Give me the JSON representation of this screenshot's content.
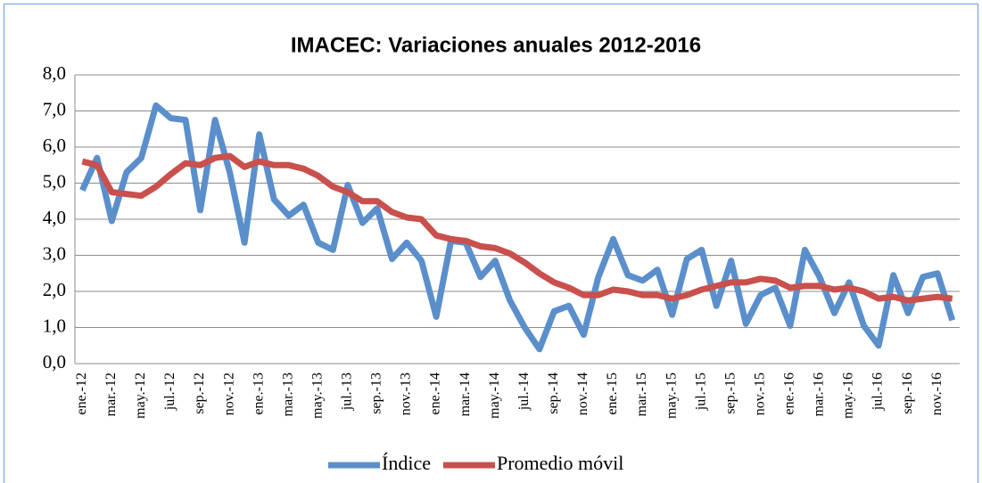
{
  "chart_data": {
    "type": "line",
    "title": "IMACEC: Variaciones anuales 2012-2016",
    "categories": [
      "ene.-12",
      null,
      "mar.-12",
      null,
      "may.-12",
      null,
      "jul.-12",
      null,
      "sep.-12",
      null,
      "nov.-12",
      null,
      "ene.-13",
      null,
      "mar.-13",
      null,
      "may.-13",
      null,
      "jul.-13",
      null,
      "sep.-13",
      null,
      "nov.-13",
      null,
      "ene.-14",
      null,
      "mar.-14",
      null,
      "may.-14",
      null,
      "jul.-14",
      null,
      "sep.-14",
      null,
      "nov.-14",
      null,
      "ene.-15",
      null,
      "mar.-15",
      null,
      "may.-15",
      null,
      "jul.-15",
      null,
      "sep.-15",
      null,
      "nov.-15",
      null,
      "ene.-16",
      null,
      "mar.-16",
      null,
      "may.-16",
      null,
      "jul.-16",
      null,
      "sep.-16",
      null,
      "nov.-16",
      null
    ],
    "series": [
      {
        "name": "Índice",
        "color": "#5b8fcb",
        "values": [
          4.8,
          5.7,
          3.95,
          5.3,
          5.7,
          7.15,
          6.8,
          6.75,
          4.25,
          6.75,
          5.3,
          3.35,
          6.35,
          4.55,
          4.1,
          4.4,
          3.35,
          3.15,
          4.95,
          3.9,
          4.3,
          2.9,
          3.35,
          2.85,
          1.3,
          3.4,
          3.35,
          2.4,
          2.85,
          1.75,
          1.0,
          0.4,
          1.45,
          1.6,
          0.8,
          2.4,
          3.45,
          2.45,
          2.3,
          2.6,
          1.35,
          2.9,
          3.15,
          1.6,
          2.85,
          1.1,
          1.9,
          2.1,
          1.05,
          3.15,
          2.4,
          1.4,
          2.25,
          1.05,
          0.5,
          2.45,
          1.4,
          2.4,
          2.5,
          1.2
        ]
      },
      {
        "name": "Promedio móvil",
        "color": "#c9504c",
        "values": [
          5.6,
          5.5,
          4.75,
          4.7,
          4.65,
          4.9,
          5.25,
          5.55,
          5.5,
          5.7,
          5.75,
          5.45,
          5.6,
          5.5,
          5.5,
          5.4,
          5.2,
          4.9,
          4.75,
          4.5,
          4.5,
          4.2,
          4.05,
          4.0,
          3.55,
          3.45,
          3.4,
          3.25,
          3.2,
          3.05,
          2.8,
          2.5,
          2.25,
          2.1,
          1.9,
          1.9,
          2.05,
          2.0,
          1.9,
          1.9,
          1.8,
          1.9,
          2.05,
          2.15,
          2.25,
          2.25,
          2.35,
          2.3,
          2.1,
          2.15,
          2.15,
          2.05,
          2.1,
          2.0,
          1.8,
          1.85,
          1.75,
          1.8,
          1.85,
          1.8
        ]
      }
    ],
    "ylim": [
      0,
      8
    ],
    "yticks": [
      {
        "value": 0,
        "label": "0,0"
      },
      {
        "value": 1,
        "label": "1,0"
      },
      {
        "value": 2,
        "label": "2,0"
      },
      {
        "value": 3,
        "label": "3,0"
      },
      {
        "value": 4,
        "label": "4,0"
      },
      {
        "value": 5,
        "label": "5,0"
      },
      {
        "value": 6,
        "label": "6,0"
      },
      {
        "value": 7,
        "label": "7,0"
      },
      {
        "value": 8,
        "label": "8,0"
      }
    ],
    "grid": true,
    "legend": "bottom"
  }
}
